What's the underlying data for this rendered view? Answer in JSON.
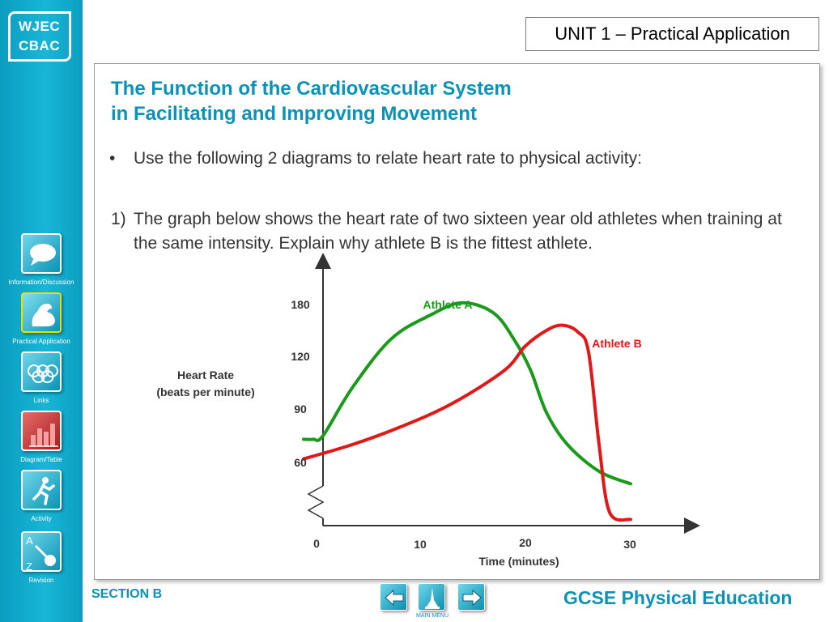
{
  "sidebar": {
    "logo": {
      "line1": "WJEC",
      "line2": "CBAC"
    },
    "items": [
      {
        "label": "Information/Discussion",
        "icon": "speech-bubble-icon"
      },
      {
        "label": "Practical Application",
        "icon": "flexed-arm-icon"
      },
      {
        "label": "Links",
        "icon": "olympic-rings-icon"
      },
      {
        "label": "Diagram/Table",
        "icon": "bar-chart-icon"
      },
      {
        "label": "Activity",
        "icon": "runner-icon"
      },
      {
        "label": "Revision",
        "icon": "a-z-magnifier-icon"
      }
    ]
  },
  "header": {
    "unit": "UNIT 1 – Practical Application"
  },
  "main": {
    "title_line1": "The Function of the Cardiovascular System",
    "title_line2": "in Facilitating and Improving Movement",
    "bullet_marker": "•",
    "bullet": "Use the following 2 diagrams to relate heart rate to physical activity:",
    "question_number": "1)",
    "question_text": "The graph below shows the heart rate of two sixteen year old athletes when training at the same intensity. Explain why athlete B is the fittest athlete."
  },
  "chart_data": {
    "type": "line",
    "ylabel_line1": "Heart Rate",
    "ylabel_line2": "(beats per minute)",
    "xlabel": "Time (minutes)",
    "x_ticks": [
      "0",
      "10",
      "20",
      "30"
    ],
    "y_ticks": [
      "60",
      "90",
      "120",
      "180"
    ],
    "series": [
      {
        "name": "Athlete A",
        "color": "#1a9a1a",
        "points": [
          [
            -2,
            73
          ],
          [
            -1,
            73
          ],
          [
            0,
            75
          ],
          [
            3,
            102
          ],
          [
            7,
            140
          ],
          [
            11,
            168
          ],
          [
            14,
            182
          ],
          [
            17,
            170
          ],
          [
            19,
            138
          ],
          [
            20.5,
            112
          ],
          [
            22,
            88
          ],
          [
            24,
            70
          ],
          [
            27,
            55
          ],
          [
            30,
            48
          ]
        ]
      },
      {
        "name": "Athlete B",
        "color": "#e01818",
        "points": [
          [
            -2,
            62
          ],
          [
            3,
            70
          ],
          [
            8,
            80
          ],
          [
            13,
            93
          ],
          [
            18,
            112
          ],
          [
            20,
            132
          ],
          [
            22,
            150
          ],
          [
            23.5,
            156
          ],
          [
            25,
            148
          ],
          [
            26,
            125
          ],
          [
            27,
            70
          ],
          [
            28,
            32
          ],
          [
            30,
            28
          ]
        ]
      }
    ],
    "x_scale": {
      "value": [
        0,
        10,
        20,
        30
      ]
    },
    "y_scale": {
      "value": [
        60,
        90,
        120,
        180
      ]
    }
  },
  "footer": {
    "section": "SECTION B",
    "brand": "GCSE Physical Education",
    "main_menu": "MAIN MENU",
    "back_icon": "left-arrow-icon",
    "home_icon": "main-menu-icon",
    "forward_icon": "right-arrow-icon"
  }
}
